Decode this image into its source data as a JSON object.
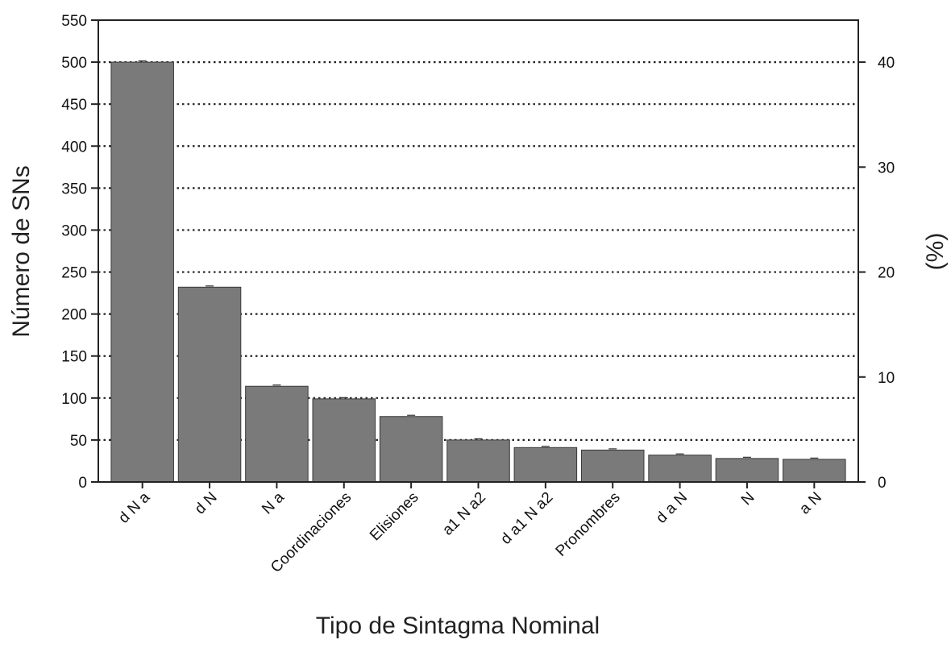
{
  "chart_data": {
    "type": "bar",
    "xlabel": "Tipo de Sintagma Nominal",
    "ylabel": "Número de SNs",
    "y2label": "(%)",
    "categories": [
      "d N a",
      "d N",
      "N a",
      "Coordinaciones",
      "Elisiones",
      "a1 N a2",
      "d a1 N a2",
      "Pronombres",
      "d a N",
      "N",
      "a N"
    ],
    "values": [
      500,
      232,
      114,
      99,
      78,
      50,
      41,
      38,
      32,
      28,
      27
    ],
    "ylim": [
      0,
      550
    ],
    "yticks": [
      0,
      50,
      100,
      150,
      200,
      250,
      300,
      350,
      400,
      450,
      500,
      550
    ],
    "y2lim": [
      0,
      44
    ],
    "y2ticks": [
      0,
      10,
      20,
      30,
      40
    ],
    "grid": "dotted horizontal",
    "bar_color": "#7a7a7a"
  }
}
